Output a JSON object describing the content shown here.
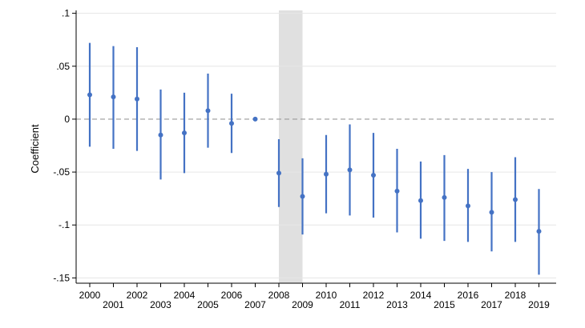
{
  "chart_data": {
    "type": "scatter",
    "subtype": "coefficient plot with confidence intervals",
    "ylabel": "Coefficient",
    "xlabel": "",
    "ylim": [
      -0.155,
      0.105
    ],
    "y_ticks": [
      {
        "value": 0.1,
        "label": ".1"
      },
      {
        "value": 0.05,
        "label": ".05"
      },
      {
        "value": 0,
        "label": "0"
      },
      {
        "value": -0.05,
        "label": "-.05"
      },
      {
        "value": -0.1,
        "label": "-.1"
      },
      {
        "value": -0.15,
        "label": "-.15"
      }
    ],
    "reference_line": {
      "y": 0,
      "style": "dashed",
      "color": "#9a9a9a"
    },
    "shaded_region": {
      "x_start": 2008,
      "x_end": 2009,
      "color": "#e0e0e0"
    },
    "grid": "horizontal",
    "colors": {
      "marker": "#4472c4",
      "ci": "#4472c4",
      "grid": "#e6e6e6"
    },
    "points": [
      {
        "year": "2000",
        "coef": 0.023,
        "lo": -0.026,
        "hi": 0.072
      },
      {
        "year": "2001",
        "coef": 0.021,
        "lo": -0.028,
        "hi": 0.069
      },
      {
        "year": "2002",
        "coef": 0.019,
        "lo": -0.03,
        "hi": 0.068
      },
      {
        "year": "2003",
        "coef": -0.015,
        "lo": -0.057,
        "hi": 0.028
      },
      {
        "year": "2004",
        "coef": -0.013,
        "lo": -0.051,
        "hi": 0.025
      },
      {
        "year": "2005",
        "coef": 0.008,
        "lo": -0.027,
        "hi": 0.043
      },
      {
        "year": "2006",
        "coef": -0.004,
        "lo": -0.032,
        "hi": 0.024
      },
      {
        "year": "2007",
        "coef": 0.0,
        "lo": 0.0,
        "hi": 0.0
      },
      {
        "year": "2008",
        "coef": -0.051,
        "lo": -0.083,
        "hi": -0.019
      },
      {
        "year": "2009",
        "coef": -0.073,
        "lo": -0.109,
        "hi": -0.037
      },
      {
        "year": "2010",
        "coef": -0.052,
        "lo": -0.089,
        "hi": -0.015
      },
      {
        "year": "2011",
        "coef": -0.048,
        "lo": -0.091,
        "hi": -0.005
      },
      {
        "year": "2012",
        "coef": -0.053,
        "lo": -0.093,
        "hi": -0.013
      },
      {
        "year": "2013",
        "coef": -0.068,
        "lo": -0.107,
        "hi": -0.028
      },
      {
        "year": "2014",
        "coef": -0.077,
        "lo": -0.113,
        "hi": -0.04
      },
      {
        "year": "2015",
        "coef": -0.074,
        "lo": -0.115,
        "hi": -0.034
      },
      {
        "year": "2016",
        "coef": -0.082,
        "lo": -0.116,
        "hi": -0.047
      },
      {
        "year": "2017",
        "coef": -0.088,
        "lo": -0.125,
        "hi": -0.05
      },
      {
        "year": "2018",
        "coef": -0.076,
        "lo": -0.116,
        "hi": -0.036
      },
      {
        "year": "2019",
        "coef": -0.106,
        "lo": -0.147,
        "hi": -0.066
      }
    ]
  }
}
